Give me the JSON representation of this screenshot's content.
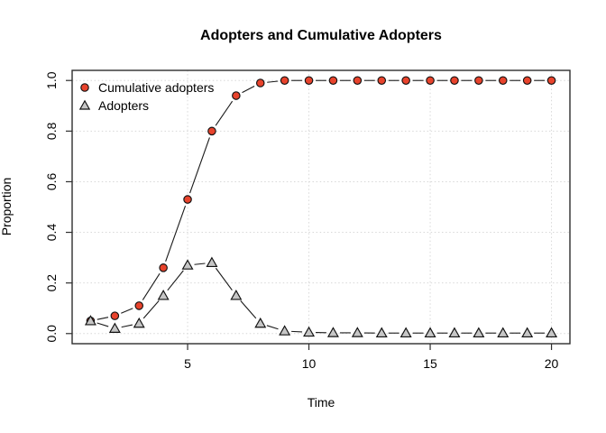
{
  "chart_data": {
    "type": "line",
    "title": "Adopters and Cumulative Adopters",
    "xlabel": "Time",
    "ylabel": "Proportion",
    "x": [
      1,
      2,
      3,
      4,
      5,
      6,
      7,
      8,
      9,
      10,
      11,
      12,
      13,
      14,
      15,
      16,
      17,
      18,
      19,
      20
    ],
    "series": [
      {
        "name": "Cumulative adopters",
        "marker": "circle",
        "color": "#E8432C",
        "values": [
          0.05,
          0.07,
          0.11,
          0.26,
          0.53,
          0.8,
          0.94,
          0.99,
          1.0,
          1.0,
          1.0,
          1.0,
          1.0,
          1.0,
          1.0,
          1.0,
          1.0,
          1.0,
          1.0,
          1.0
        ]
      },
      {
        "name": "Adopters",
        "marker": "triangle",
        "color": "#C6C6C6",
        "values": [
          0.05,
          0.02,
          0.04,
          0.15,
          0.27,
          0.28,
          0.15,
          0.04,
          0.01,
          0.005,
          0.003,
          0.003,
          0.002,
          0.002,
          0.002,
          0.002,
          0.002,
          0.002,
          0.002,
          0.002
        ]
      }
    ],
    "xticks": [
      5,
      10,
      15,
      20
    ],
    "xtick_labels": [
      "5",
      "10",
      "15",
      "20"
    ],
    "yticks": [
      0,
      0.2,
      0.4,
      0.6,
      0.8,
      1.0
    ],
    "ytick_labels": [
      "0.0",
      "0.2",
      "0.4",
      "0.6",
      "0.8",
      "1.0"
    ],
    "xlim": [
      0.24,
      20.76
    ],
    "ylim": [
      -0.04,
      1.04
    ],
    "grid": true,
    "legend_position": "top-left",
    "line_color": "#1a1a1a",
    "grid_color": "#d8d8d8",
    "box_color": "#2e2e2e",
    "text_color": "#000000"
  }
}
